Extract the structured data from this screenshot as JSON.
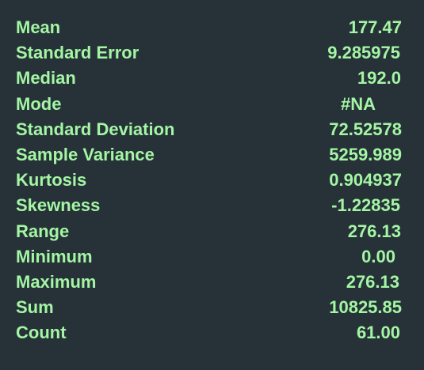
{
  "stats": [
    {
      "label": "Mean",
      "value": "177.47"
    },
    {
      "label": "Standard Error",
      "value": "9.285975"
    },
    {
      "label": "Median",
      "value": "192.0"
    },
    {
      "label": "Mode",
      "value": "#NA"
    },
    {
      "label": "Standard Deviation",
      "value": "72.52578"
    },
    {
      "label": "Sample Variance",
      "value": "5259.989"
    },
    {
      "label": "Kurtosis",
      "value": "0.904937"
    },
    {
      "label": "Skewness",
      "value": "-1.22835"
    },
    {
      "label": "Range",
      "value": "276.13"
    },
    {
      "label": "Minimum",
      "value": "0.00"
    },
    {
      "label": "Maximum",
      "value": "276.13"
    },
    {
      "label": "Sum",
      "value": "10825.85"
    },
    {
      "label": "Count",
      "value": "61.00"
    }
  ]
}
